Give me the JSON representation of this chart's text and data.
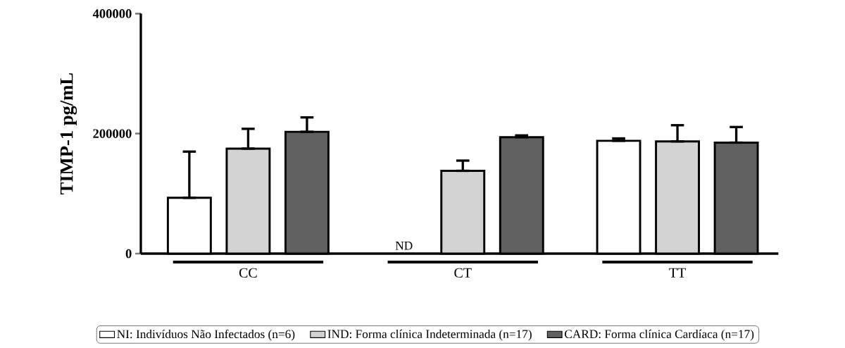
{
  "chart_data": {
    "type": "bar",
    "ylabel": "TIMP-1 pg/mL",
    "categories": [
      "CC",
      "CT",
      "TT"
    ],
    "series": [
      {
        "name": "NI: Indivíduos Não Infectados (n=6)",
        "color": "#ffffff",
        "values": [
          93000,
          null,
          188000
        ],
        "errors": [
          [
            93000,
            170000
          ],
          null,
          [
            188000,
            192000
          ]
        ]
      },
      {
        "name": "IND: Forma clínica Indeterminada (n=17)",
        "color": "#d3d3d3",
        "values": [
          175000,
          138000,
          187000
        ],
        "errors": [
          [
            175000,
            208000
          ],
          [
            138000,
            155000
          ],
          [
            187000,
            214000
          ]
        ]
      },
      {
        "name": "CARD: Forma clínica Cardíaca (n=17)",
        "color": "#606060",
        "values": [
          203000,
          194000,
          185000
        ],
        "errors": [
          [
            203000,
            227000
          ],
          [
            194000,
            197000
          ],
          [
            185000,
            211000
          ]
        ]
      }
    ],
    "ylim": [
      0,
      400000
    ],
    "yticks": [
      0,
      200000,
      400000
    ],
    "annotations": [
      "ND"
    ],
    "legend": "bottom",
    "grid": false
  }
}
